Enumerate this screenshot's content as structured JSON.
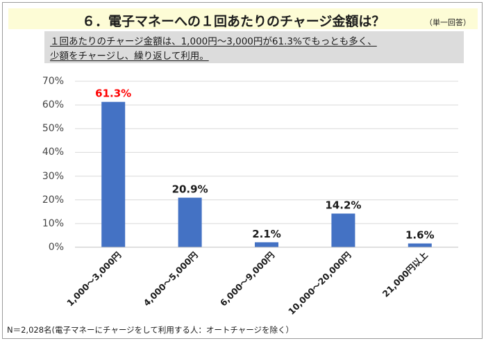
{
  "header": {
    "title": "６．電子マネーへの１回あたりのチャージ金額は？",
    "answer_type": "（単一回答）"
  },
  "summary": {
    "line1": "１回あたりのチャージ金額は、1,000円～3,000円が61.3%でもっとも多く、",
    "line2": "少額をチャージし、繰り返して利用。"
  },
  "footnote": "N＝2,028名(電子マネーにチャージをして利用する人：オートチャージを除く）",
  "chart_data": {
    "type": "bar",
    "title": "",
    "xlabel": "",
    "ylabel": "",
    "categories": [
      "1,000～3,000円",
      "4,000～5,000円",
      "6,000～9,000円",
      "10,000～20,000円",
      "21,000円以上"
    ],
    "values": [
      61.3,
      20.9,
      2.1,
      14.2,
      1.6
    ],
    "data_labels": [
      "61.3%",
      "20.9%",
      "2.1%",
      "14.2%",
      "1.6%"
    ],
    "y_ticks": [
      "0%",
      "10%",
      "20%",
      "30%",
      "40%",
      "50%",
      "60%",
      "70%"
    ],
    "ylim": [
      0,
      70
    ],
    "grid": true,
    "bar_color": "#4472c4",
    "highlight_label_color": "#ff0000",
    "label_color": "#1a1a1a"
  }
}
